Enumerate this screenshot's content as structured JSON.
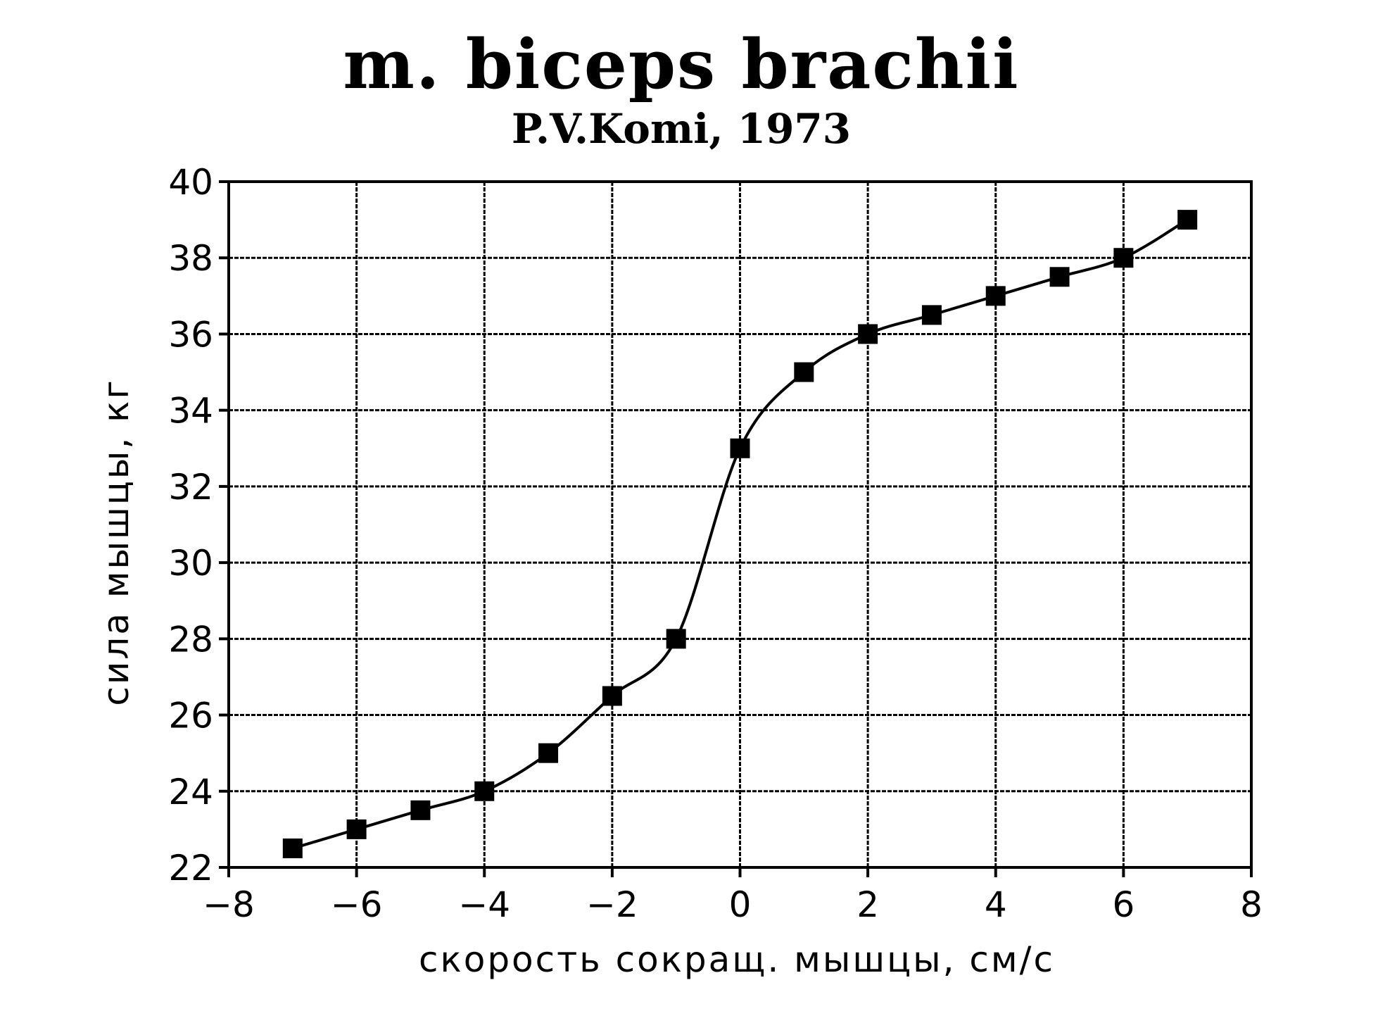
{
  "chart_data": {
    "type": "line",
    "title": "m. biceps brachii",
    "subtitle": "P.V.Komi, 1973",
    "xlabel": "скорость сокращ. мышцы, см/с",
    "ylabel": "сила мышцы, кг",
    "xlim": [
      -8,
      8
    ],
    "ylim": [
      22,
      40
    ],
    "xticks": [
      -8,
      -6,
      -4,
      -2,
      0,
      2,
      4,
      6,
      8
    ],
    "yticks": [
      22,
      24,
      26,
      28,
      30,
      32,
      34,
      36,
      38,
      40
    ],
    "xtick_labels": [
      "−8",
      "−6",
      "−4",
      "−2",
      "0",
      "2",
      "4",
      "6",
      "8"
    ],
    "ytick_labels": [
      "22",
      "24",
      "26",
      "28",
      "30",
      "32",
      "34",
      "36",
      "38",
      "40"
    ],
    "grid": true,
    "marker": "square",
    "colors": {
      "line": "#000000",
      "grid": "#000000",
      "background": "#ffffff"
    },
    "series": [
      {
        "x": [
          -7,
          -6,
          -5,
          -4,
          -3,
          -2,
          -1,
          0,
          1,
          2,
          3,
          4,
          5,
          6,
          7
        ],
        "y": [
          22.5,
          23.0,
          23.5,
          24.0,
          25.0,
          26.5,
          28.0,
          33.0,
          35.0,
          36.0,
          36.5,
          37.0,
          37.5,
          38.0,
          39.0
        ]
      }
    ]
  }
}
